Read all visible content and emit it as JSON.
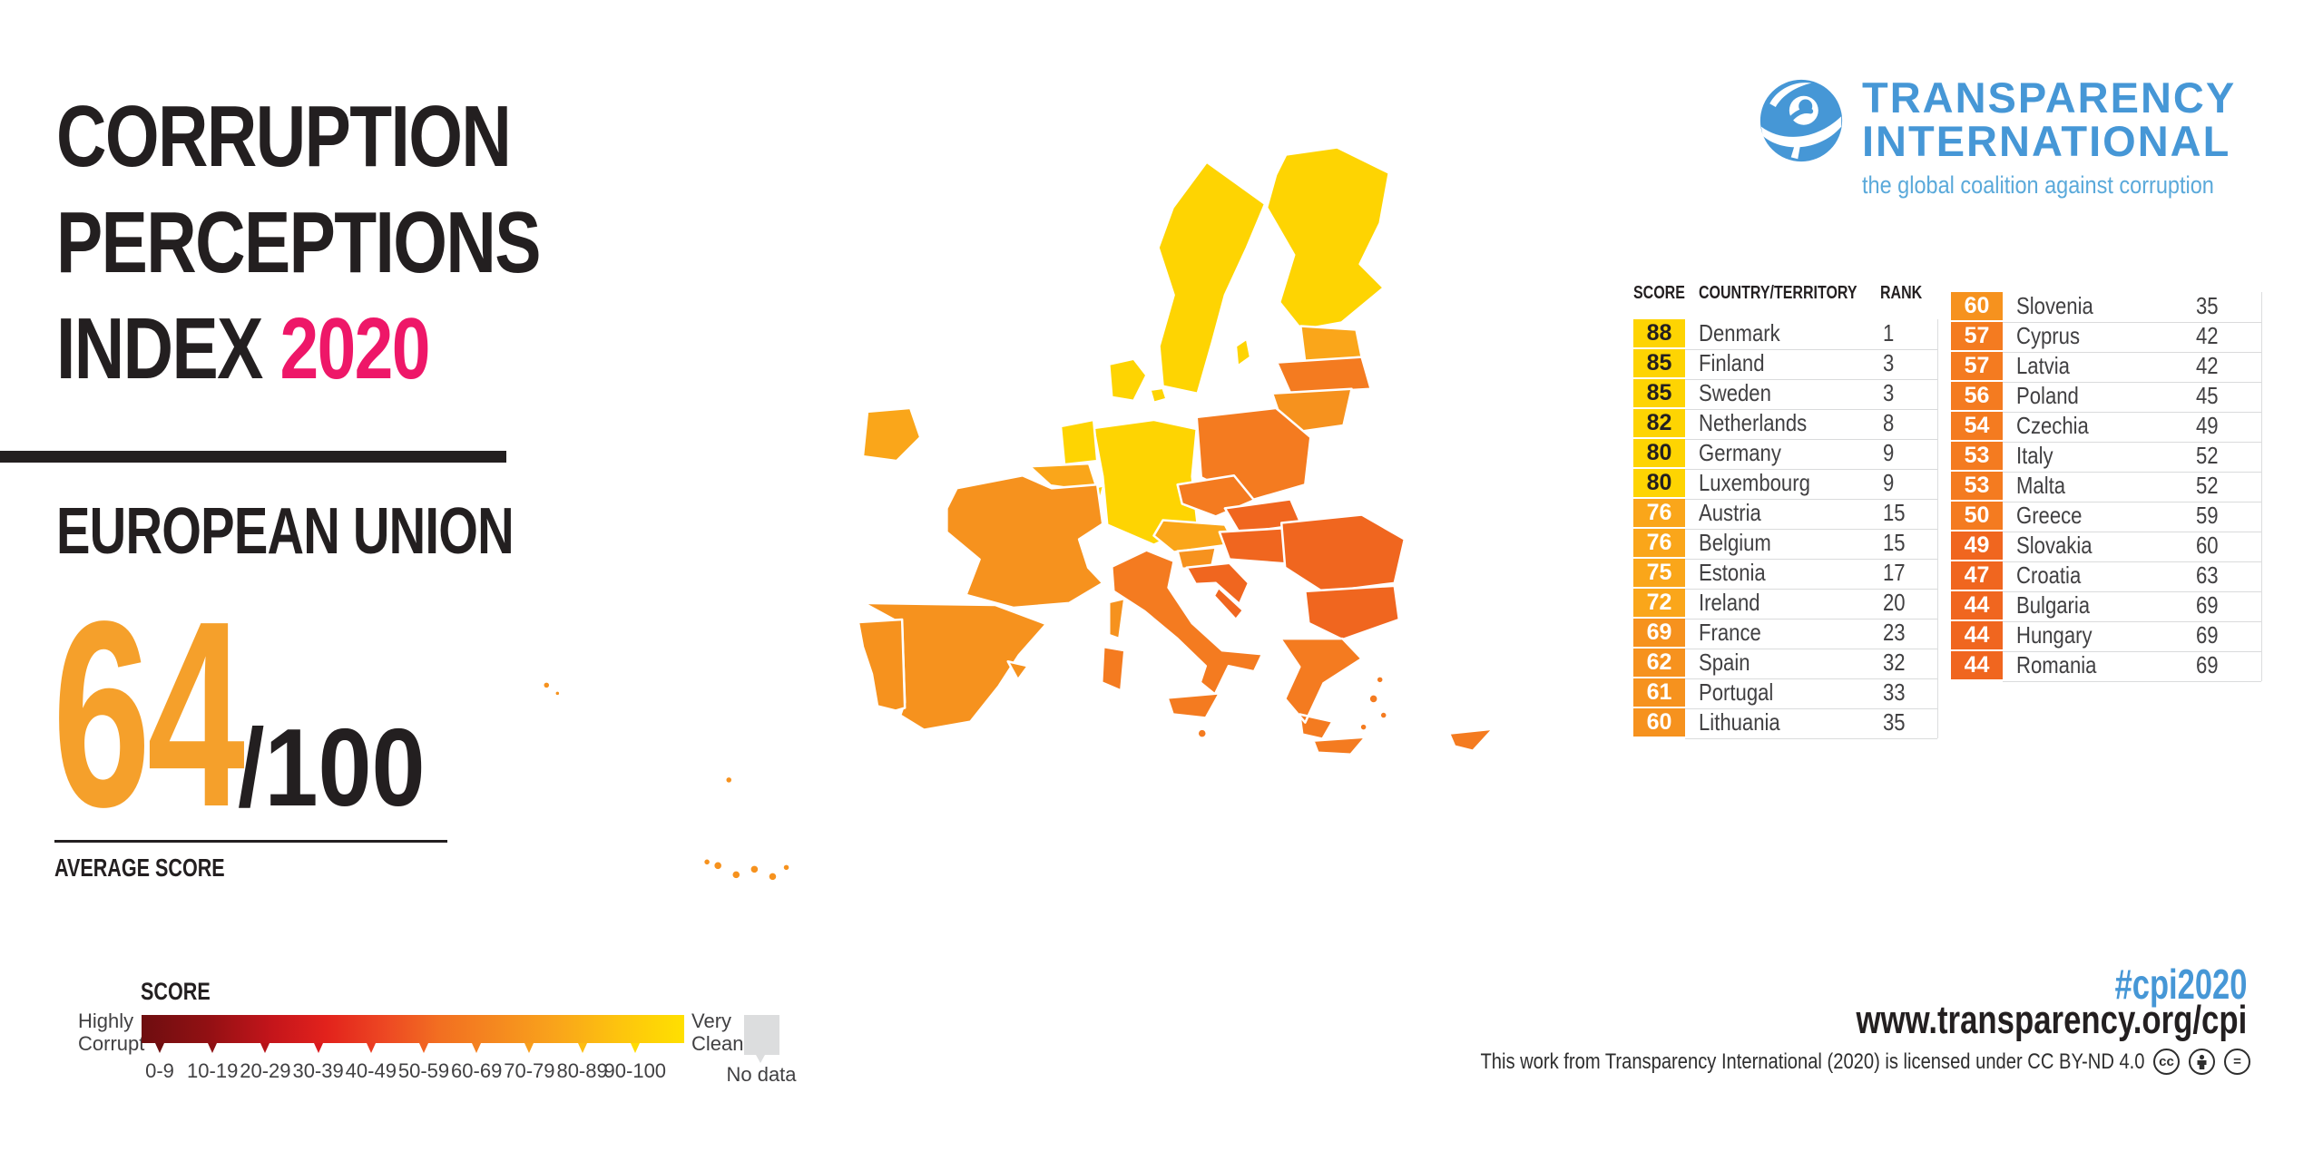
{
  "title": {
    "line1": "CORRUPTION",
    "line2": "PERCEPTIONS",
    "line3": "INDEX",
    "year": "2020"
  },
  "region_label": "EUROPEAN UNION",
  "average": {
    "score": "64",
    "denominator": "/100",
    "label": "AVERAGE SCORE"
  },
  "logo": {
    "line1": "TRANSPARENCY",
    "line2": "INTERNATIONAL",
    "tagline": "the global coalition against corruption"
  },
  "legend": {
    "title": "SCORE",
    "low_line1": "Highly",
    "low_line2": "Corrupt",
    "high_line1": "Very",
    "high_line2": "Clean",
    "ranges": [
      "0-9",
      "10-19",
      "20-29",
      "30-39",
      "40-49",
      "50-59",
      "60-69",
      "70-79",
      "80-89",
      "90-100"
    ],
    "no_data": "No data"
  },
  "table": {
    "header_score": "SCORE",
    "header_country": "COUNTRY/TERRITORY",
    "header_rank": "RANK"
  },
  "footer": {
    "hashtag": "#cpi2020",
    "url": "www.transparency.org/cpi",
    "license": "This work from Transparency International (2020) is licensed under CC BY-ND 4.0",
    "icon_cc": "cc",
    "icon_nd": "="
  },
  "colors": {
    "dark": "#231F20",
    "pink": "#EE1768",
    "score_orange": "#F5A02B",
    "logo_blue": "#4697D6",
    "tagline_blue": "#5AA9DA",
    "no_data_gray": "#DCDDDE",
    "bands": {
      "80": "#FED402",
      "70": "#FAA61A",
      "60": "#F6921E",
      "50": "#F47B20",
      "40": "#F0661F"
    },
    "band_text_dark": "#231F20",
    "band_text_light": "#FFFFFF",
    "tick_colors": [
      "#6E0E10",
      "#8E1013",
      "#B61318",
      "#DA1A1E",
      "#EA3C22",
      "#F16222",
      "#F48120",
      "#F89E1B",
      "#FCBD12",
      "#FFDC00"
    ],
    "scale_stops": [
      {
        "c": "#6E0E10",
        "p": 0
      },
      {
        "c": "#911013",
        "p": 12
      },
      {
        "c": "#C4151B",
        "p": 24
      },
      {
        "c": "#E2221C",
        "p": 34
      },
      {
        "c": "#ED4823",
        "p": 45
      },
      {
        "c": "#F26F21",
        "p": 55
      },
      {
        "c": "#F58A1F",
        "p": 66
      },
      {
        "c": "#F9A31B",
        "p": 76
      },
      {
        "c": "#FDC40E",
        "p": 88
      },
      {
        "c": "#FFE000",
        "p": 100
      }
    ]
  },
  "chart_data": {
    "type": "choropleth",
    "title": "Corruption Perceptions Index 2020",
    "region": "European Union",
    "average_score": 64,
    "score_scale": {
      "min": 0,
      "max": 100,
      "low_label": "Highly Corrupt",
      "high_label": "Very Clean",
      "bands": [
        "0-9",
        "10-19",
        "20-29",
        "30-39",
        "40-49",
        "50-59",
        "60-69",
        "70-79",
        "80-89",
        "90-100",
        "No data"
      ]
    },
    "table_split_index": 14,
    "countries": [
      {
        "country": "Denmark",
        "score": 88,
        "rank": 1
      },
      {
        "country": "Finland",
        "score": 85,
        "rank": 3
      },
      {
        "country": "Sweden",
        "score": 85,
        "rank": 3
      },
      {
        "country": "Netherlands",
        "score": 82,
        "rank": 8
      },
      {
        "country": "Germany",
        "score": 80,
        "rank": 9
      },
      {
        "country": "Luxembourg",
        "score": 80,
        "rank": 9
      },
      {
        "country": "Austria",
        "score": 76,
        "rank": 15
      },
      {
        "country": "Belgium",
        "score": 76,
        "rank": 15
      },
      {
        "country": "Estonia",
        "score": 75,
        "rank": 17
      },
      {
        "country": "Ireland",
        "score": 72,
        "rank": 20
      },
      {
        "country": "France",
        "score": 69,
        "rank": 23
      },
      {
        "country": "Spain",
        "score": 62,
        "rank": 32
      },
      {
        "country": "Portugal",
        "score": 61,
        "rank": 33
      },
      {
        "country": "Lithuania",
        "score": 60,
        "rank": 35
      },
      {
        "country": "Slovenia",
        "score": 60,
        "rank": 35
      },
      {
        "country": "Cyprus",
        "score": 57,
        "rank": 42
      },
      {
        "country": "Latvia",
        "score": 57,
        "rank": 42
      },
      {
        "country": "Poland",
        "score": 56,
        "rank": 45
      },
      {
        "country": "Czechia",
        "score": 54,
        "rank": 49
      },
      {
        "country": "Italy",
        "score": 53,
        "rank": 52
      },
      {
        "country": "Malta",
        "score": 53,
        "rank": 52
      },
      {
        "country": "Greece",
        "score": 50,
        "rank": 59
      },
      {
        "country": "Slovakia",
        "score": 49,
        "rank": 60
      },
      {
        "country": "Croatia",
        "score": 47,
        "rank": 63
      },
      {
        "country": "Bulgaria",
        "score": 44,
        "rank": 69
      },
      {
        "country": "Hungary",
        "score": 44,
        "rank": 69
      },
      {
        "country": "Romania",
        "score": 44,
        "rank": 69
      }
    ]
  }
}
